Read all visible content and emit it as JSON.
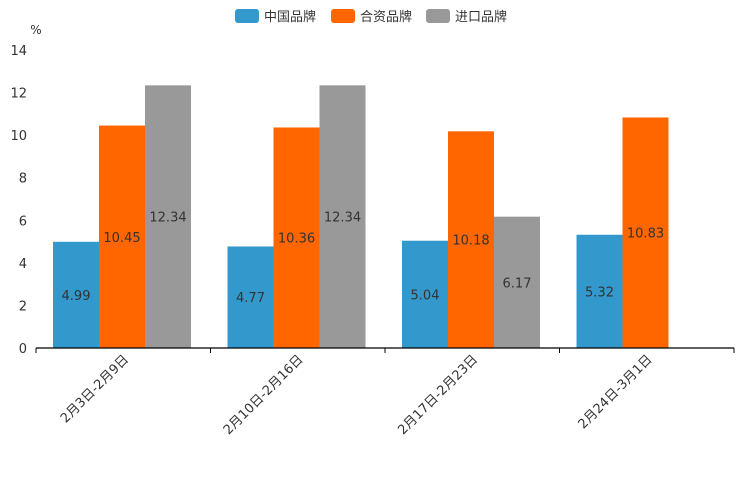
{
  "chart_data": {
    "type": "bar",
    "title": "",
    "xlabel": "",
    "ylabel": "%",
    "ylim": [
      0,
      14
    ],
    "yticks": [
      0,
      2,
      4,
      6,
      8,
      10,
      12,
      14
    ],
    "grid": false,
    "legend_position": "top-center",
    "categories": [
      "2月3日-2月9日",
      "2月10日-2月16日",
      "2月17日-2月23日",
      "2月24日-3月1日"
    ],
    "series": [
      {
        "name": "中国品牌",
        "color": "#3399CC",
        "values": [
          4.99,
          4.77,
          5.04,
          5.32
        ],
        "labels": [
          "4.99",
          "4.77",
          "5.04",
          "5.32"
        ]
      },
      {
        "name": "合资品牌",
        "color": "#FF6600",
        "values": [
          10.45,
          10.36,
          10.18,
          10.83
        ],
        "labels": [
          "10.45",
          "10.36",
          "10.18",
          "10.83"
        ]
      },
      {
        "name": "进口品牌",
        "color": "#999999",
        "values": [
          12.34,
          12.34,
          6.17,
          null
        ],
        "labels": [
          "12.34",
          "12.34",
          "6.17",
          null
        ]
      }
    ]
  }
}
